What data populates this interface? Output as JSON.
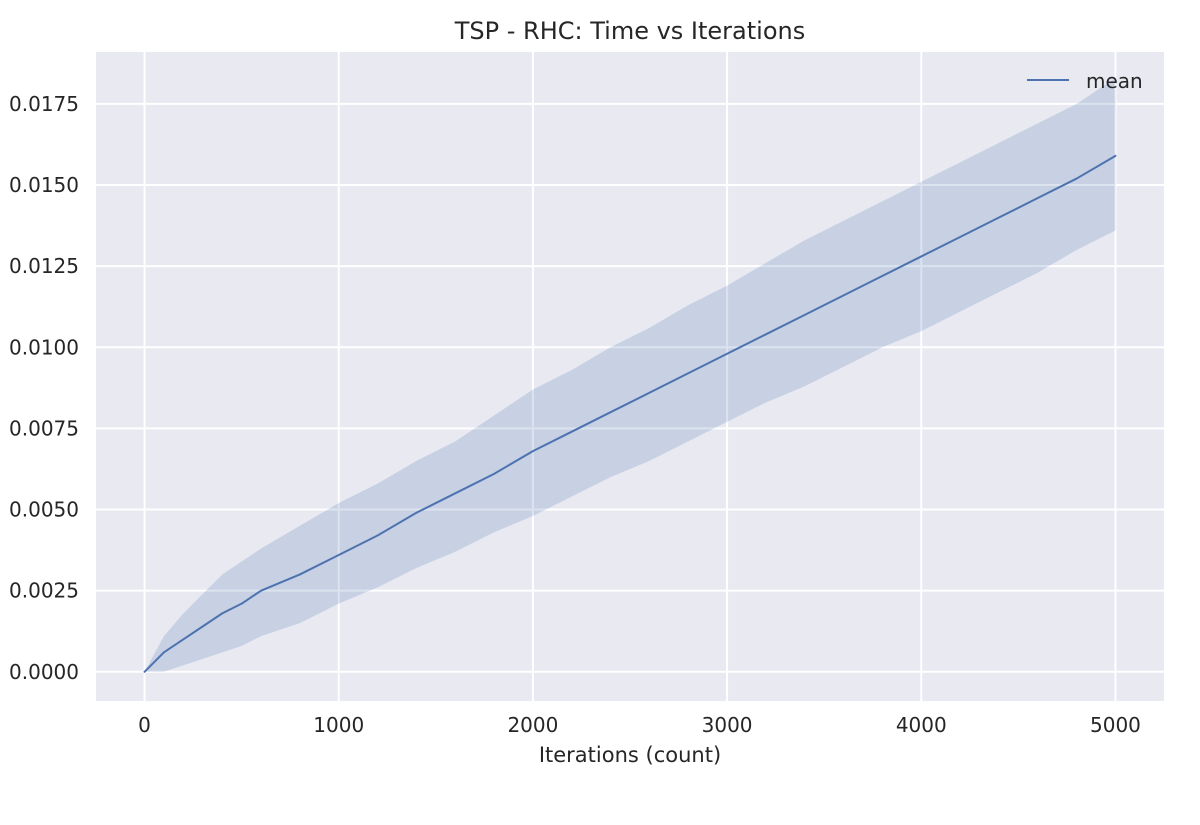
{
  "colors": {
    "plot_background": "#e8e9f1",
    "grid": "#ffffff",
    "line": "#4c72b0",
    "band_fill": "#4c72b0",
    "text": "#262626"
  },
  "chart_data": {
    "type": "line",
    "title": "TSP - RHC: Time vs Iterations",
    "xlabel": "Iterations (count)",
    "ylabel": "",
    "xlim": [
      -250,
      5250
    ],
    "ylim": [
      -0.0009,
      0.0191
    ],
    "x_ticks": [
      0,
      1000,
      2000,
      3000,
      4000,
      5000
    ],
    "x_tick_labels": [
      "0",
      "1000",
      "2000",
      "3000",
      "4000",
      "5000"
    ],
    "y_ticks": [
      0.0,
      0.0025,
      0.005,
      0.0075,
      0.01,
      0.0125,
      0.015,
      0.0175
    ],
    "y_tick_labels": [
      "0.0000",
      "0.0025",
      "0.0050",
      "0.0075",
      "0.0100",
      "0.0125",
      "0.0150",
      "0.0175"
    ],
    "grid": true,
    "legend": {
      "position": "top-right",
      "entries": [
        "mean"
      ]
    },
    "series": [
      {
        "name": "mean",
        "x": [
          0,
          100,
          200,
          300,
          400,
          500,
          600,
          800,
          1000,
          1200,
          1400,
          1600,
          1800,
          2000,
          2200,
          2400,
          2600,
          2800,
          3000,
          3200,
          3400,
          3600,
          3800,
          4000,
          4200,
          4400,
          4600,
          4800,
          5000
        ],
        "values": [
          0.0,
          0.0006,
          0.001,
          0.0014,
          0.0018,
          0.0021,
          0.0025,
          0.003,
          0.0036,
          0.0042,
          0.0049,
          0.0055,
          0.0061,
          0.0068,
          0.0074,
          0.008,
          0.0086,
          0.0092,
          0.0098,
          0.0104,
          0.011,
          0.0116,
          0.0122,
          0.0128,
          0.0134,
          0.014,
          0.0146,
          0.0152,
          0.0159
        ],
        "lower": [
          0.0,
          0.0,
          0.0002,
          0.0004,
          0.0006,
          0.0008,
          0.0011,
          0.0015,
          0.0021,
          0.0026,
          0.0032,
          0.0037,
          0.0043,
          0.0048,
          0.0054,
          0.006,
          0.0065,
          0.0071,
          0.0077,
          0.0083,
          0.0088,
          0.0094,
          0.01,
          0.0105,
          0.0111,
          0.0117,
          0.0123,
          0.013,
          0.0136
        ],
        "upper": [
          0.0,
          0.0011,
          0.0018,
          0.0024,
          0.003,
          0.0034,
          0.0038,
          0.0045,
          0.0052,
          0.0058,
          0.0065,
          0.0071,
          0.0079,
          0.0087,
          0.0093,
          0.01,
          0.0106,
          0.0113,
          0.0119,
          0.0126,
          0.0133,
          0.0139,
          0.0145,
          0.0151,
          0.0157,
          0.0163,
          0.0169,
          0.0175,
          0.0183
        ]
      }
    ]
  }
}
